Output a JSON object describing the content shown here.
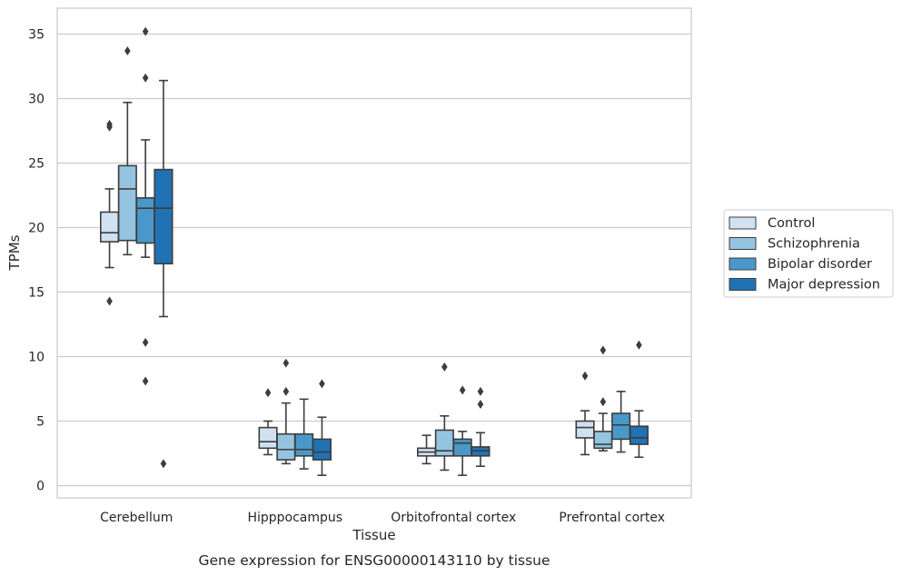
{
  "caption": "Gene expression for ENSG00000143110 by tissue",
  "chart_data": {
    "type": "box",
    "xlabel": "Tissue",
    "ylabel": "TPMs",
    "ylim": [
      -1,
      37
    ],
    "yticks": [
      0,
      5,
      10,
      15,
      20,
      25,
      30,
      35
    ],
    "grid": true,
    "legend_position": "right",
    "categories": [
      "Cerebellum",
      "Hipppocampus",
      "Orbitofrontal cortex",
      "Prefrontal cortex"
    ],
    "series": [
      {
        "name": "Control",
        "color": "#d0e1f2",
        "boxes": [
          {
            "whisker_low": 16.9,
            "q1": 18.9,
            "median": 19.6,
            "q3": 21.2,
            "whisker_high": 23.0,
            "outliers": [
              27.8,
              28.0,
              14.3
            ]
          },
          {
            "whisker_low": 2.4,
            "q1": 2.9,
            "median": 3.4,
            "q3": 4.5,
            "whisker_high": 5.0,
            "outliers": [
              7.2
            ]
          },
          {
            "whisker_low": 1.7,
            "q1": 2.3,
            "median": 2.6,
            "q3": 2.9,
            "whisker_high": 3.9,
            "outliers": []
          },
          {
            "whisker_low": 2.4,
            "q1": 3.7,
            "median": 4.5,
            "q3": 5.0,
            "whisker_high": 5.8,
            "outliers": [
              8.5
            ]
          }
        ]
      },
      {
        "name": "Schizophrenia",
        "color": "#94c4df",
        "boxes": [
          {
            "whisker_low": 17.9,
            "q1": 19.0,
            "median": 23.0,
            "q3": 24.8,
            "whisker_high": 29.7,
            "outliers": [
              33.7
            ]
          },
          {
            "whisker_low": 1.7,
            "q1": 2.0,
            "median": 2.8,
            "q3": 4.0,
            "whisker_high": 6.4,
            "outliers": [
              7.3,
              9.5
            ]
          },
          {
            "whisker_low": 1.2,
            "q1": 2.3,
            "median": 2.7,
            "q3": 4.3,
            "whisker_high": 5.4,
            "outliers": [
              9.2
            ]
          },
          {
            "whisker_low": 2.7,
            "q1": 2.9,
            "median": 3.2,
            "q3": 4.2,
            "whisker_high": 5.6,
            "outliers": [
              6.5,
              10.5
            ]
          }
        ]
      },
      {
        "name": "Bipolar disorder",
        "color": "#4a98c9",
        "boxes": [
          {
            "whisker_low": 17.7,
            "q1": 18.8,
            "median": 21.5,
            "q3": 22.3,
            "whisker_high": 26.8,
            "outliers": [
              35.2,
              31.6,
              11.1,
              8.1
            ]
          },
          {
            "whisker_low": 1.3,
            "q1": 2.3,
            "median": 2.8,
            "q3": 4.0,
            "whisker_high": 6.7,
            "outliers": []
          },
          {
            "whisker_low": 0.8,
            "q1": 2.3,
            "median": 3.3,
            "q3": 3.6,
            "whisker_high": 4.2,
            "outliers": [
              7.4
            ]
          },
          {
            "whisker_low": 2.6,
            "q1": 3.6,
            "median": 4.7,
            "q3": 5.6,
            "whisker_high": 7.3,
            "outliers": []
          }
        ]
      },
      {
        "name": "Major depression",
        "color": "#2171b5",
        "boxes": [
          {
            "whisker_low": 13.1,
            "q1": 17.2,
            "median": 21.5,
            "q3": 24.5,
            "whisker_high": 31.4,
            "outliers": [
              1.7
            ]
          },
          {
            "whisker_low": 0.8,
            "q1": 2.0,
            "median": 2.6,
            "q3": 3.6,
            "whisker_high": 5.3,
            "outliers": [
              7.9
            ]
          },
          {
            "whisker_low": 1.5,
            "q1": 2.3,
            "median": 2.7,
            "q3": 3.0,
            "whisker_high": 4.1,
            "outliers": [
              7.3,
              6.3
            ]
          },
          {
            "whisker_low": 2.2,
            "q1": 3.2,
            "median": 3.7,
            "q3": 4.6,
            "whisker_high": 5.8,
            "outliers": [
              10.9
            ]
          }
        ]
      }
    ]
  }
}
